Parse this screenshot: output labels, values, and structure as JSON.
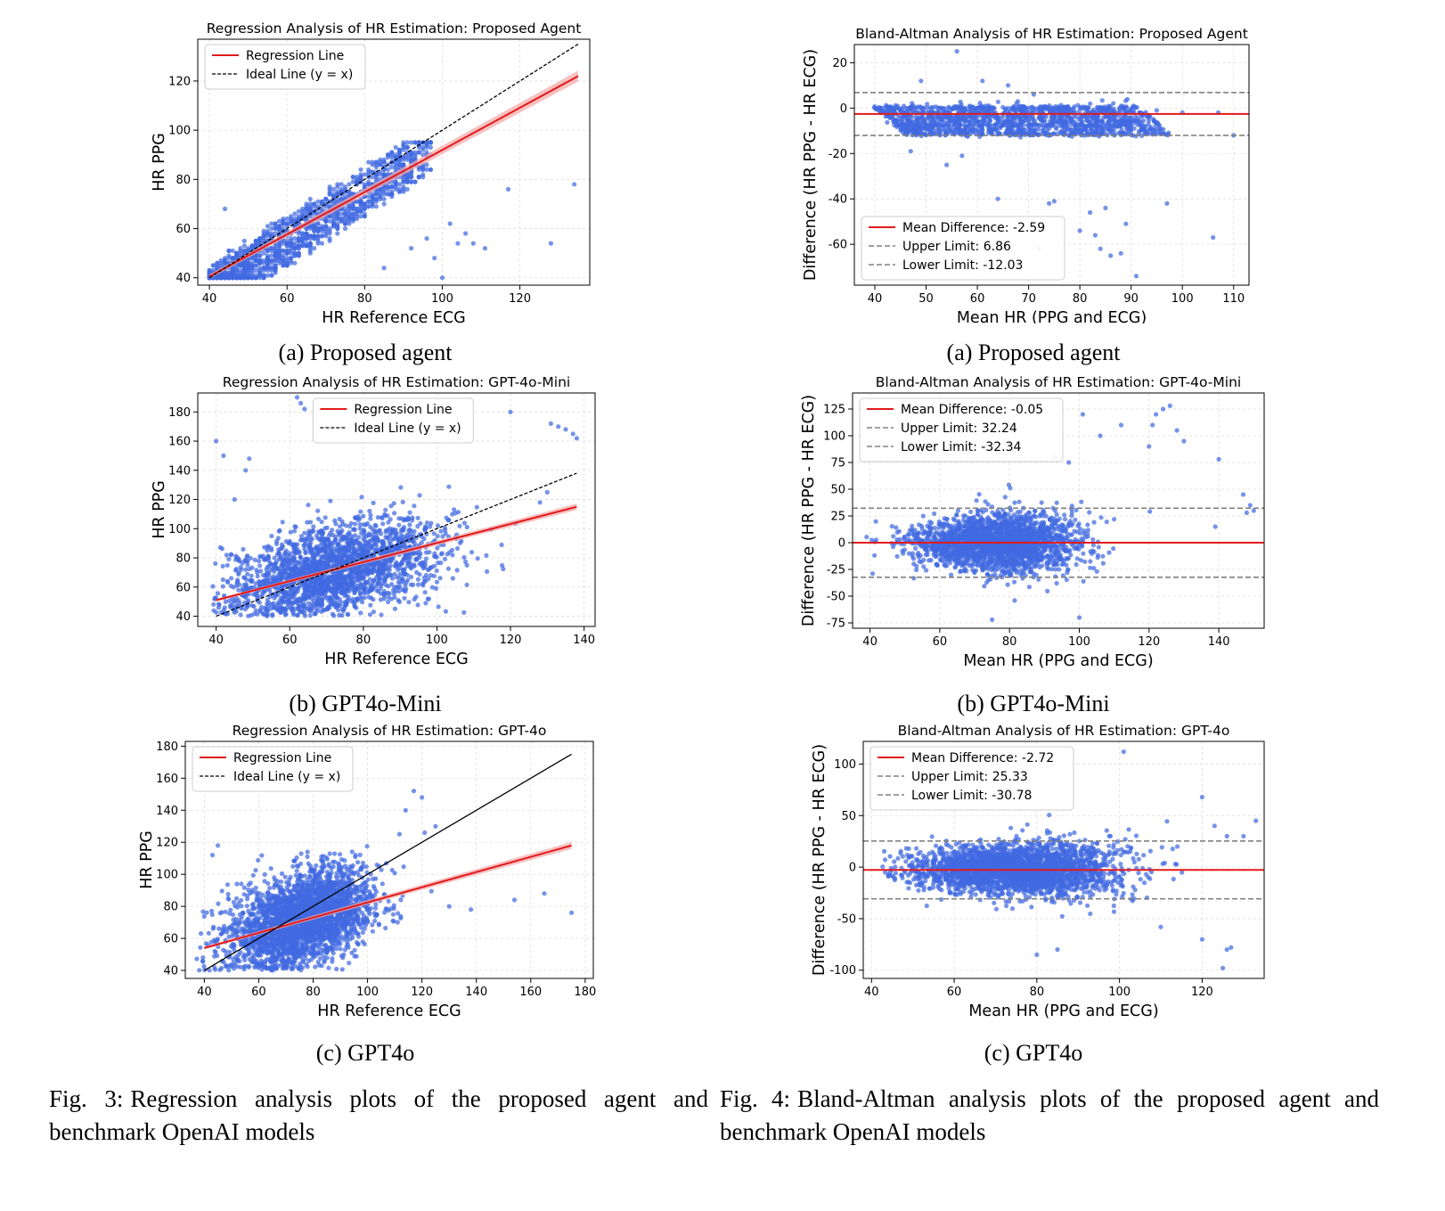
{
  "figure3": {
    "label": "Fig. 3:",
    "caption": "Regression analysis plots of the proposed agent and benchmark OpenAI models"
  },
  "figure4": {
    "label": "Fig. 4:",
    "caption": "Bland-Altman analysis plots of the proposed agent and benchmark OpenAI models"
  },
  "colors": {
    "points": "#4169e1",
    "regression": "#e31a1c",
    "ci_band": "#f4a6a6",
    "limits": "#808080",
    "ideal": "#000000",
    "grid": "#dddddd"
  },
  "chart_data": [
    {
      "id": "reg_a",
      "type": "scatter",
      "subcaption": "(a) Proposed agent",
      "title": "Regression Analysis of HR Estimation: Proposed Agent",
      "xlabel": "HR Reference ECG",
      "ylabel": "HR PPG",
      "xlim": [
        37,
        138
      ],
      "ylim": [
        37,
        137
      ],
      "xticks": [
        40,
        60,
        80,
        100,
        120
      ],
      "yticks": [
        40,
        60,
        80,
        100,
        120
      ],
      "grid": true,
      "legend_position": "upper-left",
      "legend": [
        "Regression Line",
        "Ideal Line (y = x)"
      ],
      "regression": {
        "x": [
          40,
          135
        ],
        "y": [
          40.5,
          122
        ]
      },
      "ideal": {
        "x": [
          40,
          135
        ],
        "y": [
          40,
          135
        ]
      },
      "outliers": [
        [
          44,
          68
        ],
        [
          85,
          44
        ],
        [
          92,
          52
        ],
        [
          96,
          56
        ],
        [
          98,
          48
        ],
        [
          102,
          62
        ],
        [
          104,
          54
        ],
        [
          106,
          58
        ],
        [
          108,
          54
        ],
        [
          111,
          52
        ],
        [
          117,
          76
        ],
        [
          128,
          54
        ],
        [
          134,
          78
        ],
        [
          100,
          40
        ]
      ],
      "cloud": {
        "x_range": [
          40,
          97
        ],
        "ymin_offset": -14,
        "ymax_offset": 4,
        "ymax_cap": 95
      }
    },
    {
      "id": "ba_a",
      "type": "scatter",
      "subcaption": "(a) Proposed agent",
      "title": "Bland-Altman Analysis of HR Estimation: Proposed Agent",
      "xlabel": "Mean HR (PPG and ECG)",
      "ylabel": "Difference (HR PPG - HR ECG)",
      "xlim": [
        36,
        113
      ],
      "ylim": [
        -78,
        28
      ],
      "xticks": [
        40,
        50,
        60,
        70,
        80,
        90,
        100,
        110
      ],
      "yticks": [
        20,
        0,
        -20,
        -40,
        -60
      ],
      "grid": true,
      "legend_position": "lower-left",
      "legend": [
        "Mean Difference: -2.59",
        "Upper Limit: 6.86",
        "Lower Limit: -12.03"
      ],
      "mean_difference": -2.59,
      "upper_limit": 6.86,
      "lower_limit": -12.03,
      "outliers": [
        [
          56,
          25
        ],
        [
          49,
          12
        ],
        [
          61,
          12
        ],
        [
          66,
          10
        ],
        [
          71,
          6
        ],
        [
          47,
          -19
        ],
        [
          54,
          -25
        ],
        [
          57,
          -21
        ],
        [
          64,
          -40
        ],
        [
          72,
          -62
        ],
        [
          74,
          -42
        ],
        [
          75,
          -41
        ],
        [
          80,
          -54
        ],
        [
          82,
          -46
        ],
        [
          83,
          -56
        ],
        [
          84,
          -62
        ],
        [
          85,
          -44
        ],
        [
          86,
          -65
        ],
        [
          88,
          -64
        ],
        [
          89,
          -51
        ],
        [
          91,
          -74
        ],
        [
          97,
          -42
        ],
        [
          106,
          -57
        ],
        [
          107,
          -2
        ],
        [
          110,
          -12
        ],
        [
          100,
          -2
        ],
        [
          95,
          -1
        ]
      ],
      "cloud": {
        "x_range": [
          40,
          92
        ],
        "ymin": -12,
        "ymax": 2
      }
    },
    {
      "id": "reg_b",
      "type": "scatter",
      "subcaption": "(b) GPT4o-Mini",
      "title": "Regression Analysis of HR Estimation: GPT-4o-Mini",
      "xlabel": "HR Reference ECG",
      "ylabel": "HR PPG",
      "xlim": [
        35,
        143
      ],
      "ylim": [
        33,
        193
      ],
      "xticks": [
        40,
        60,
        80,
        100,
        120,
        140
      ],
      "yticks": [
        40,
        60,
        80,
        100,
        120,
        140,
        160,
        180
      ],
      "grid": true,
      "legend_position": "upper-center",
      "legend": [
        "Regression Line",
        "Ideal Line (y = x)"
      ],
      "regression": {
        "x": [
          40,
          138
        ],
        "y": [
          51,
          115
        ]
      },
      "ideal": {
        "x": [
          40,
          138
        ],
        "y": [
          40,
          138
        ]
      },
      "outliers": [
        [
          40,
          160
        ],
        [
          42,
          150
        ],
        [
          49,
          148
        ],
        [
          62,
          190
        ],
        [
          63,
          186
        ],
        [
          64,
          182
        ],
        [
          120,
          180
        ],
        [
          131,
          172
        ],
        [
          133,
          170
        ],
        [
          135,
          168
        ],
        [
          137,
          165
        ],
        [
          138,
          162
        ],
        [
          128,
          118
        ],
        [
          130,
          125
        ],
        [
          45,
          120
        ],
        [
          48,
          140
        ]
      ],
      "cloud": {
        "center_x": 72,
        "center_y": 72,
        "sx": 14,
        "sy": 15,
        "n": 2200
      }
    },
    {
      "id": "ba_b",
      "type": "scatter",
      "subcaption": "(b) GPT4o-Mini",
      "title": "Bland-Altman Analysis of HR Estimation: GPT-4o-Mini",
      "xlabel": "Mean HR (PPG and ECG)",
      "ylabel": "Difference (HR PPG - HR ECG)",
      "xlim": [
        35,
        153
      ],
      "ylim": [
        -80,
        140
      ],
      "xticks": [
        40,
        60,
        80,
        100,
        120,
        140
      ],
      "yticks": [
        125,
        100,
        75,
        50,
        25,
        0,
        -25,
        -50,
        -75
      ],
      "grid": true,
      "legend_position": "upper-left",
      "legend": [
        "Mean Difference: -0.05",
        "Upper Limit: 32.24",
        "Lower Limit: -32.34"
      ],
      "mean_difference": -0.05,
      "upper_limit": 32.24,
      "lower_limit": -32.34,
      "outliers": [
        [
          120,
          90
        ],
        [
          121,
          110
        ],
        [
          122,
          120
        ],
        [
          124,
          125
        ],
        [
          126,
          128
        ],
        [
          128,
          105
        ],
        [
          130,
          95
        ],
        [
          101,
          120
        ],
        [
          112,
          110
        ],
        [
          140,
          78
        ],
        [
          147,
          45
        ],
        [
          149,
          35
        ],
        [
          150,
          30
        ],
        [
          148,
          28
        ],
        [
          139,
          15
        ],
        [
          106,
          100
        ],
        [
          97,
          75
        ],
        [
          93,
          80
        ],
        [
          75,
          -72
        ],
        [
          100,
          -70
        ]
      ],
      "cloud": {
        "center_x": 76,
        "center_y": 0,
        "sx": 12,
        "sy": 15,
        "n": 2200
      }
    },
    {
      "id": "reg_c",
      "type": "scatter",
      "subcaption": "(c) GPT4o",
      "title": "Regression Analysis of HR Estimation: GPT-4o",
      "xlabel": "HR Reference ECG",
      "ylabel": "HR PPG",
      "xlim": [
        33,
        183
      ],
      "ylim": [
        35,
        183
      ],
      "xticks": [
        40,
        60,
        80,
        100,
        120,
        140,
        160,
        180
      ],
      "yticks": [
        40,
        60,
        80,
        100,
        120,
        140,
        160,
        180
      ],
      "grid": true,
      "legend_position": "upper-left",
      "legend": [
        "Regression Line",
        "Ideal Line (y = x)"
      ],
      "regression": {
        "x": [
          40,
          175
        ],
        "y": [
          54,
          118
        ]
      },
      "ideal": {
        "x": [
          40,
          175
        ],
        "y": [
          40,
          175
        ]
      },
      "outliers": [
        [
          117,
          152
        ],
        [
          120,
          148
        ],
        [
          114,
          140
        ],
        [
          121,
          126
        ],
        [
          125,
          130
        ],
        [
          130,
          80
        ],
        [
          138,
          78
        ],
        [
          154,
          84
        ],
        [
          165,
          88
        ],
        [
          175,
          76
        ],
        [
          45,
          118
        ],
        [
          43,
          112
        ]
      ],
      "cloud": {
        "center_x": 76,
        "center_y": 72,
        "sx": 13,
        "sy": 14,
        "n": 2800
      }
    },
    {
      "id": "ba_c",
      "type": "scatter",
      "subcaption": "(c) GPT4o",
      "title": "Bland-Altman Analysis of HR Estimation: GPT-4o",
      "xlabel": "Mean HR (PPG and ECG)",
      "ylabel": "Difference (HR PPG - HR ECG)",
      "xlim": [
        38,
        135
      ],
      "ylim": [
        -108,
        122
      ],
      "xticks": [
        40,
        60,
        80,
        100,
        120
      ],
      "yticks": [
        100,
        50,
        0,
        -50,
        -100
      ],
      "grid": true,
      "legend_position": "upper-left",
      "legend": [
        "Mean Difference: -2.72",
        "Upper Limit: 25.33",
        "Lower Limit: -30.78"
      ],
      "mean_difference": -2.72,
      "upper_limit": 25.33,
      "lower_limit": -30.78,
      "outliers": [
        [
          101,
          112
        ],
        [
          120,
          68
        ],
        [
          123,
          40
        ],
        [
          126,
          30
        ],
        [
          130,
          30
        ],
        [
          133,
          45
        ],
        [
          120,
          -70
        ],
        [
          126,
          -80
        ],
        [
          125,
          -98
        ],
        [
          127,
          -78
        ],
        [
          114,
          20
        ],
        [
          110,
          -58
        ],
        [
          85,
          -80
        ],
        [
          80,
          -85
        ]
      ],
      "cloud": {
        "center_x": 75,
        "center_y": -2,
        "sx": 12,
        "sy": 14,
        "n": 2800
      }
    }
  ]
}
